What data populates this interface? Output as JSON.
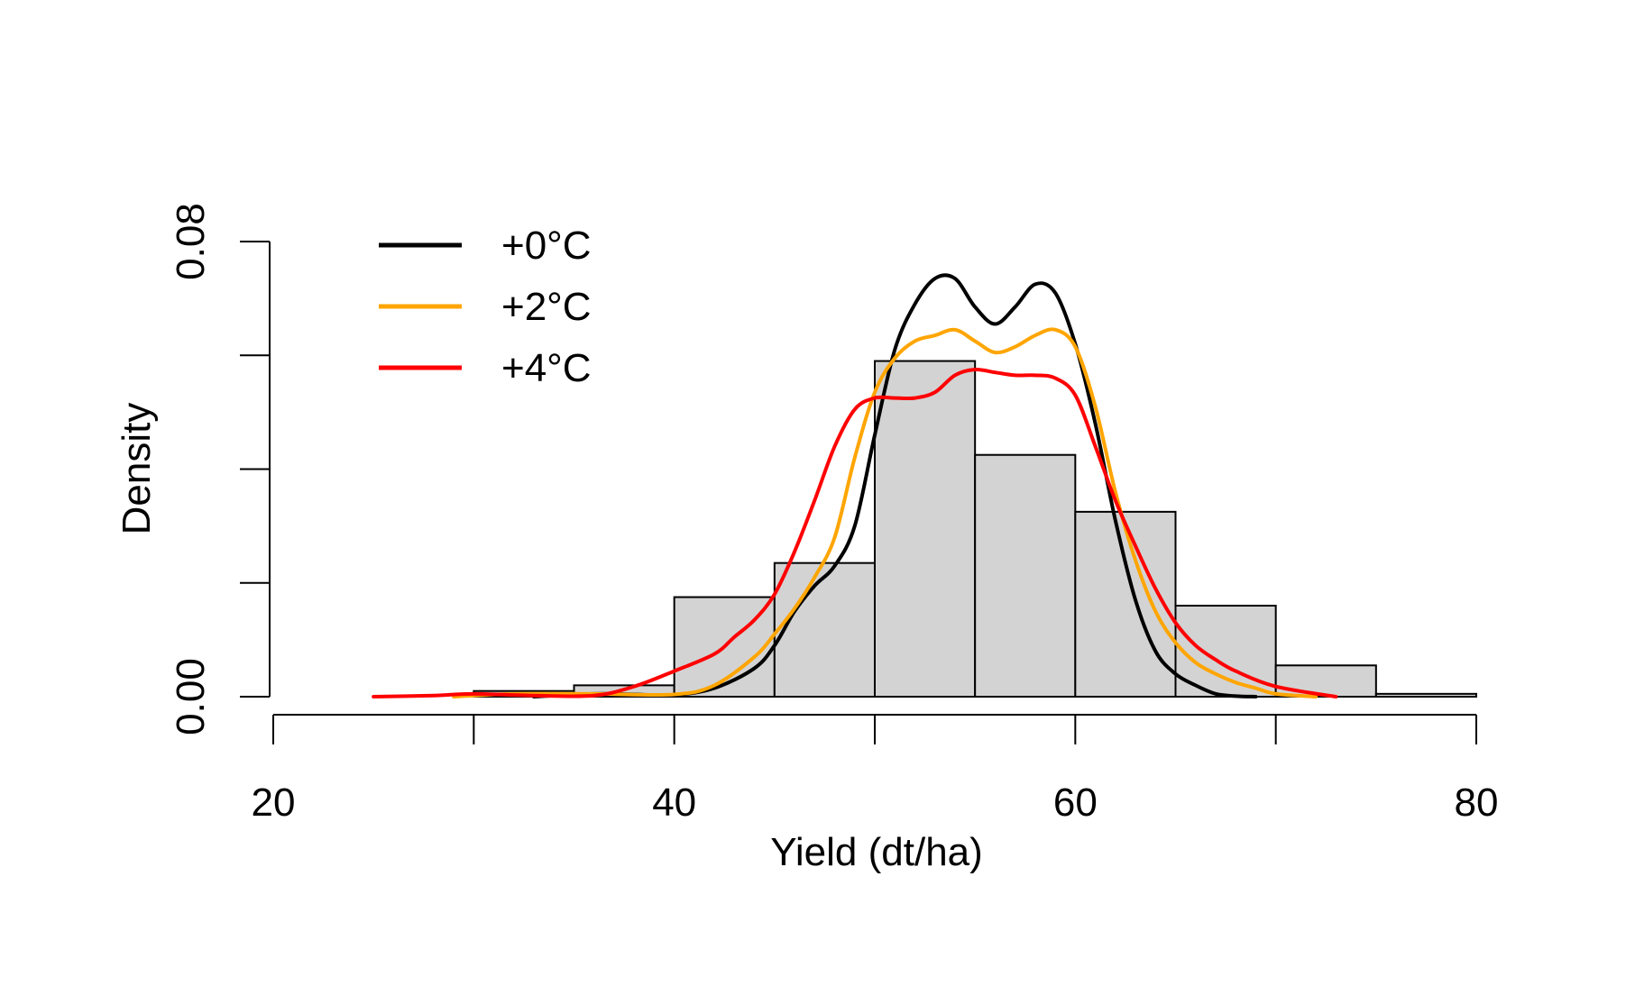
{
  "chart_data": {
    "type": "bar",
    "title": "",
    "xlabel": "Yield (dt/ha)",
    "ylabel": "Density",
    "xlim": [
      20,
      80
    ],
    "ylim": [
      0,
      0.08
    ],
    "x_ticks": [
      20,
      30,
      40,
      50,
      60,
      70,
      80
    ],
    "x_tick_labels": [
      "20",
      "",
      "40",
      "",
      "60",
      "",
      "80"
    ],
    "y_ticks": [
      0,
      0.02,
      0.04,
      0.06,
      0.08
    ],
    "y_tick_labels": [
      "0.00",
      "",
      "",
      "",
      "0.08"
    ],
    "grid": false,
    "legend_position": "top-left",
    "histogram": {
      "bin_edges": [
        30,
        35,
        40,
        45,
        50,
        55,
        60,
        65,
        70,
        75,
        80
      ],
      "densities": [
        0.001,
        0.002,
        0.0175,
        0.0235,
        0.059,
        0.0425,
        0.0325,
        0.016,
        0.0055,
        0.0005
      ],
      "fill": "#d3d3d3",
      "stroke": "#000000"
    },
    "series": [
      {
        "name": "+0°C",
        "color": "#000000",
        "x": [
          33,
          36,
          38,
          40,
          42,
          44,
          45,
          46,
          47,
          48,
          49,
          50,
          51,
          52,
          53,
          54,
          55,
          56,
          57,
          58,
          59,
          60,
          61,
          62,
          63,
          64,
          65,
          66,
          67,
          68,
          69
        ],
        "y": [
          0.0,
          0.0005,
          0.0004,
          0.0003,
          0.0015,
          0.005,
          0.009,
          0.015,
          0.0195,
          0.023,
          0.03,
          0.046,
          0.061,
          0.069,
          0.0735,
          0.0735,
          0.0685,
          0.0655,
          0.0685,
          0.0725,
          0.071,
          0.062,
          0.048,
          0.031,
          0.017,
          0.008,
          0.004,
          0.002,
          0.0005,
          0.0001,
          0.0
        ]
      },
      {
        "name": "+2°C",
        "color": "#ffa500",
        "x": [
          29,
          32,
          36,
          40,
          42,
          44,
          45,
          46,
          47,
          48,
          49,
          50,
          51,
          52,
          53,
          54,
          55,
          56,
          57,
          58,
          59,
          60,
          61,
          62,
          63,
          64,
          65,
          66,
          67,
          68,
          69,
          70,
          72
        ],
        "y": [
          0.0,
          0.0005,
          0.0005,
          0.0004,
          0.002,
          0.007,
          0.011,
          0.0155,
          0.021,
          0.028,
          0.042,
          0.0535,
          0.0595,
          0.0625,
          0.0635,
          0.0645,
          0.0625,
          0.0605,
          0.0615,
          0.0635,
          0.0645,
          0.0615,
          0.051,
          0.036,
          0.024,
          0.015,
          0.0095,
          0.006,
          0.004,
          0.0025,
          0.0015,
          0.0005,
          0.0
        ]
      },
      {
        "name": "+4°C",
        "color": "#ff0000",
        "x": [
          25,
          28,
          30,
          33,
          36,
          38,
          40,
          42,
          43,
          44,
          45,
          46,
          47,
          48,
          49,
          50,
          51,
          52,
          53,
          54,
          55,
          56,
          57,
          58,
          59,
          60,
          61,
          62,
          63,
          64,
          65,
          66,
          67,
          68,
          70,
          73
        ],
        "y": [
          0.0,
          0.0002,
          0.0005,
          0.0002,
          0.0002,
          0.0018,
          0.0045,
          0.0075,
          0.0105,
          0.0135,
          0.018,
          0.0255,
          0.0345,
          0.044,
          0.0505,
          0.0525,
          0.0525,
          0.0525,
          0.0535,
          0.0565,
          0.0575,
          0.057,
          0.0565,
          0.0565,
          0.056,
          0.053,
          0.044,
          0.0345,
          0.0265,
          0.019,
          0.013,
          0.009,
          0.0065,
          0.0045,
          0.0018,
          0.0
        ]
      }
    ]
  }
}
